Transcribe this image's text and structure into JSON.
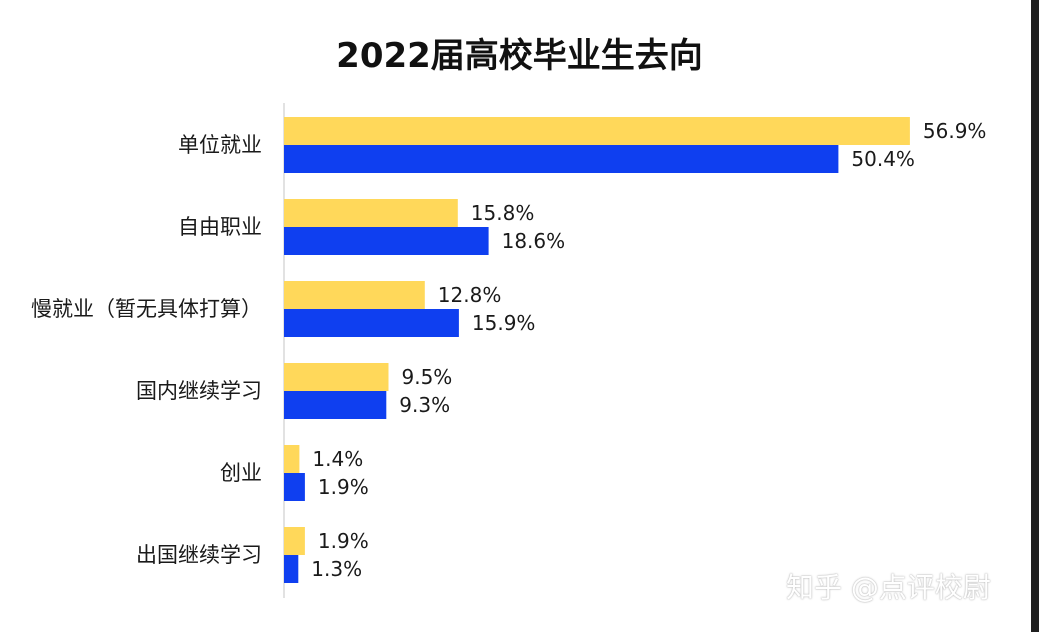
{
  "chart_data": {
    "type": "bar",
    "orientation": "horizontal",
    "title": "2022届高校毕业生去向",
    "categories": [
      "单位就业",
      "自由职业",
      "慢就业（暂无具体打算）",
      "国内继续学习",
      "创业",
      "出国继续学习"
    ],
    "series": [
      {
        "values": [
          56.9,
          15.8,
          12.8,
          9.5,
          1.4,
          1.9
        ],
        "color": "#FFD85A"
      },
      {
        "values": [
          50.4,
          18.6,
          15.9,
          9.3,
          1.9,
          1.3
        ],
        "color": "#0F3FF0"
      }
    ],
    "value_labels": [
      [
        "56.9%",
        "15.8%",
        "12.8%",
        "9.5%",
        "1.4%",
        "1.9%"
      ],
      [
        "50.4%",
        "18.6%",
        "15.9%",
        "9.3%",
        "1.9%",
        "1.3%"
      ]
    ],
    "xlim": [
      0,
      60
    ],
    "grid": false,
    "legend": "none"
  },
  "watermark": "知乎 @点评校尉"
}
